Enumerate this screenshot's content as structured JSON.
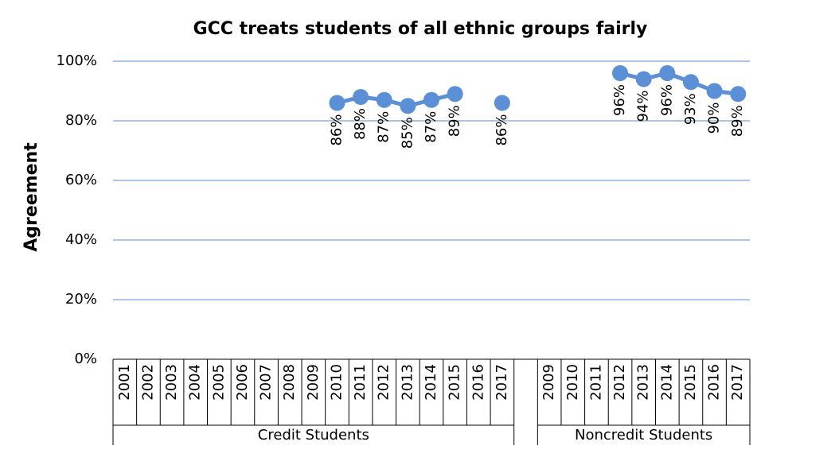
{
  "chart_data": {
    "type": "line",
    "title": "GCC treats students of all ethnic groups fairly",
    "y_label": "Agreement",
    "color": "#5b8fd6",
    "grid": true,
    "ylim": [
      0,
      100
    ],
    "yticks": [
      {
        "value": 0,
        "label": "0%"
      },
      {
        "value": 20,
        "label": "20%"
      },
      {
        "value": 40,
        "label": "40%"
      },
      {
        "value": 60,
        "label": "60%"
      },
      {
        "value": 80,
        "label": "80%"
      },
      {
        "value": 100,
        "label": "100%"
      }
    ],
    "groups": [
      {
        "name": "Credit Students",
        "categories": [
          "2001",
          "2002",
          "2003",
          "2004",
          "2005",
          "2006",
          "2007",
          "2008",
          "2009",
          "2010",
          "2011",
          "2012",
          "2013",
          "2014",
          "2015",
          "2016",
          "2017"
        ],
        "values": [
          null,
          null,
          null,
          null,
          null,
          null,
          null,
          null,
          null,
          86,
          88,
          87,
          85,
          87,
          89,
          null,
          86
        ],
        "value_labels": [
          null,
          null,
          null,
          null,
          null,
          null,
          null,
          null,
          null,
          "86%",
          "88%",
          "87%",
          "85%",
          "87%",
          "89%",
          null,
          "86%"
        ]
      },
      {
        "name": "Noncredit Students",
        "categories": [
          "2009",
          "2010",
          "2011",
          "2012",
          "2013",
          "2014",
          "2015",
          "2016",
          "2017"
        ],
        "values": [
          null,
          null,
          null,
          96,
          94,
          96,
          93,
          90,
          89
        ],
        "value_labels": [
          null,
          null,
          null,
          "96%",
          "94%",
          "96%",
          "93%",
          "90%",
          "89%"
        ]
      }
    ]
  }
}
